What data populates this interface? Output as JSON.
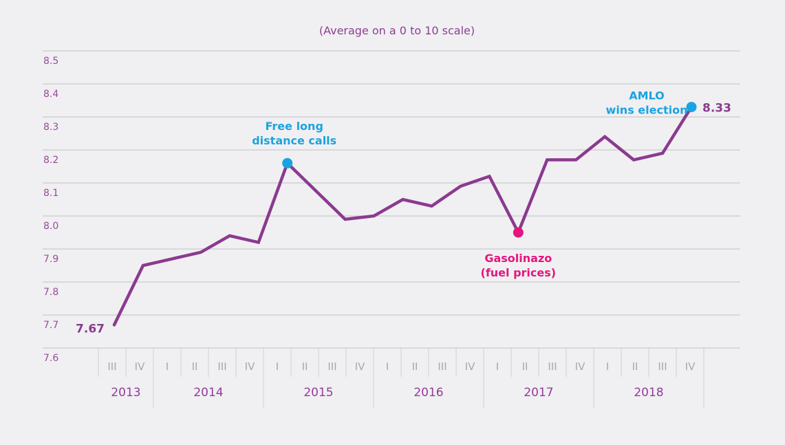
{
  "chart_data": {
    "type": "line",
    "title": "(Average on a 0 to 10 scale)",
    "xlabel": "",
    "ylabel": "",
    "ylim": [
      7.6,
      8.5
    ],
    "yticks": [
      "7.6",
      "7.7",
      "7.8",
      "7.9",
      "8.0",
      "8.1",
      "8.2",
      "8.3",
      "8.4",
      "8.5"
    ],
    "grid": true,
    "years": [
      {
        "label": "2013",
        "quarters": [
          "III",
          "IV"
        ]
      },
      {
        "label": "2014",
        "quarters": [
          "I",
          "II",
          "III",
          "IV"
        ]
      },
      {
        "label": "2015",
        "quarters": [
          "I",
          "II",
          "III",
          "IV"
        ]
      },
      {
        "label": "2016",
        "quarters": [
          "I",
          "II",
          "III",
          "IV"
        ]
      },
      {
        "label": "2017",
        "quarters": [
          "I",
          "II",
          "III",
          "IV"
        ]
      },
      {
        "label": "2018",
        "quarters": [
          "I",
          "II",
          "III",
          "IV"
        ]
      }
    ],
    "series": [
      {
        "name": "Average",
        "color": "#8b3a8f",
        "values": [
          7.67,
          7.85,
          7.87,
          7.89,
          7.94,
          7.92,
          8.16,
          8.075,
          7.99,
          8.0,
          8.05,
          8.03,
          8.09,
          8.12,
          7.95,
          8.17,
          8.17,
          8.24,
          8.17,
          8.19,
          8.33
        ]
      }
    ],
    "data_labels": [
      {
        "index": 0,
        "text": "7.67"
      },
      {
        "index": 20,
        "text": "8.33"
      }
    ],
    "annotations": [
      {
        "index": 6,
        "lines": [
          "Free long",
          "distance calls"
        ],
        "color": "#1aa3e0",
        "position": "above"
      },
      {
        "index": 14,
        "lines": [
          "Gasolinazo",
          "(fuel prices)"
        ],
        "color": "#e5157e",
        "position": "below"
      },
      {
        "index": 20,
        "lines": [
          "AMLO",
          "wins election"
        ],
        "color": "#1aa3e0",
        "position": "left"
      }
    ]
  }
}
